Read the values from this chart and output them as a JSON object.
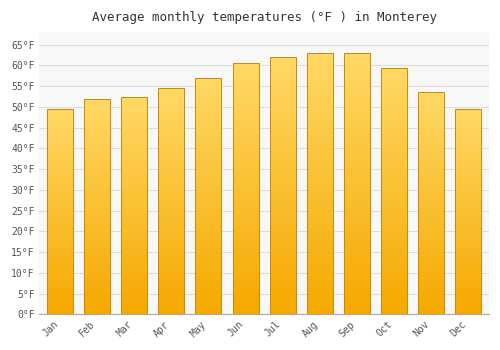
{
  "title": "Average monthly temperatures (°F ) in Monterey",
  "months": [
    "Jan",
    "Feb",
    "Mar",
    "Apr",
    "May",
    "Jun",
    "Jul",
    "Aug",
    "Sep",
    "Oct",
    "Nov",
    "Dec"
  ],
  "values": [
    49.5,
    52.0,
    52.5,
    54.5,
    57.0,
    60.5,
    62.0,
    63.0,
    63.0,
    59.5,
    53.5,
    49.5
  ],
  "bar_color_bottom": "#F5A800",
  "bar_color_top": "#FFD966",
  "bar_edge_color": "#CC8800",
  "ylim": [
    0,
    68
  ],
  "yticks": [
    0,
    5,
    10,
    15,
    20,
    25,
    30,
    35,
    40,
    45,
    50,
    55,
    60,
    65
  ],
  "ytick_labels": [
    "0°F",
    "5°F",
    "10°F",
    "15°F",
    "20°F",
    "25°F",
    "30°F",
    "35°F",
    "40°F",
    "45°F",
    "50°F",
    "55°F",
    "60°F",
    "65°F"
  ],
  "background_color": "#ffffff",
  "plot_bg_color": "#f8f8f8",
  "grid_color": "#dddddd",
  "title_fontsize": 9,
  "tick_fontsize": 7,
  "font_family": "monospace",
  "title_color": "#333333",
  "tick_color": "#555555"
}
